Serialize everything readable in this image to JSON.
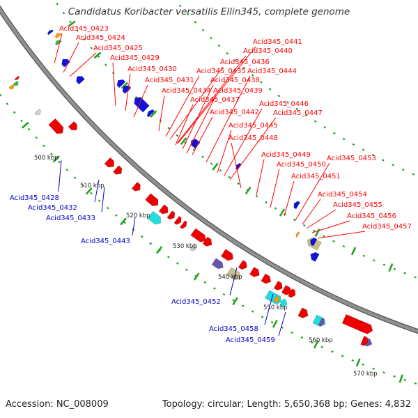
{
  "title": "Candidatus Koribacter versatilis Ellin345, complete genome",
  "footer": {
    "accession": "Accession: NC_008009",
    "topology": "Topology: circular; Length: 5,650,368 bp; Genes: 4,832"
  },
  "colors": {
    "forward_label": "#ff0000",
    "reverse_label": "#0000cc",
    "backbone": "#909090",
    "tick": "#22a022",
    "red_gene": "#ee0000",
    "blue_gene": "#1111dd",
    "cyan_gene": "#22dddd",
    "olive_gene": "#c8c088",
    "purple_gene": "#6655aa",
    "grey_gene": "#cfcfcf",
    "orange_gene": "#ff9900",
    "green_gene": "#33bb33"
  },
  "scale_labels": [
    "500 kbp",
    "510 kbp",
    "520 kbp",
    "530 kbp",
    "540 kbp",
    "550 kbp",
    "560 kbp",
    "570 kbp"
  ],
  "forward_labels": [
    "Acid345_0423",
    "Acid345_0424",
    "Acid345_0425",
    "Acid345_0429",
    "Acid345_0430",
    "Acid345_0431",
    "Acid345_0434",
    "Acid345_0435",
    "Acid345_0436",
    "Acid345_0437",
    "Acid345_0438",
    "Acid345_0439",
    "Acid345_0440",
    "Acid345_0441",
    "Acid345_0442",
    "Acid345_0444",
    "Acid345_0445",
    "Acid345_0446",
    "Acid345_0447",
    "Acid345_0448",
    "Acid345_0449",
    "Acid345_0450",
    "Acid345_0451",
    "Acid345_0453",
    "Acid345_0454",
    "Acid345_0455",
    "Acid345_0456",
    "Acid345_0457"
  ],
  "reverse_labels": [
    "Acid345_0428",
    "Acid345_0432",
    "Acid345_0433",
    "Acid345_0443",
    "Acid345_0452",
    "Acid345_0458",
    "Acid345_0459"
  ]
}
